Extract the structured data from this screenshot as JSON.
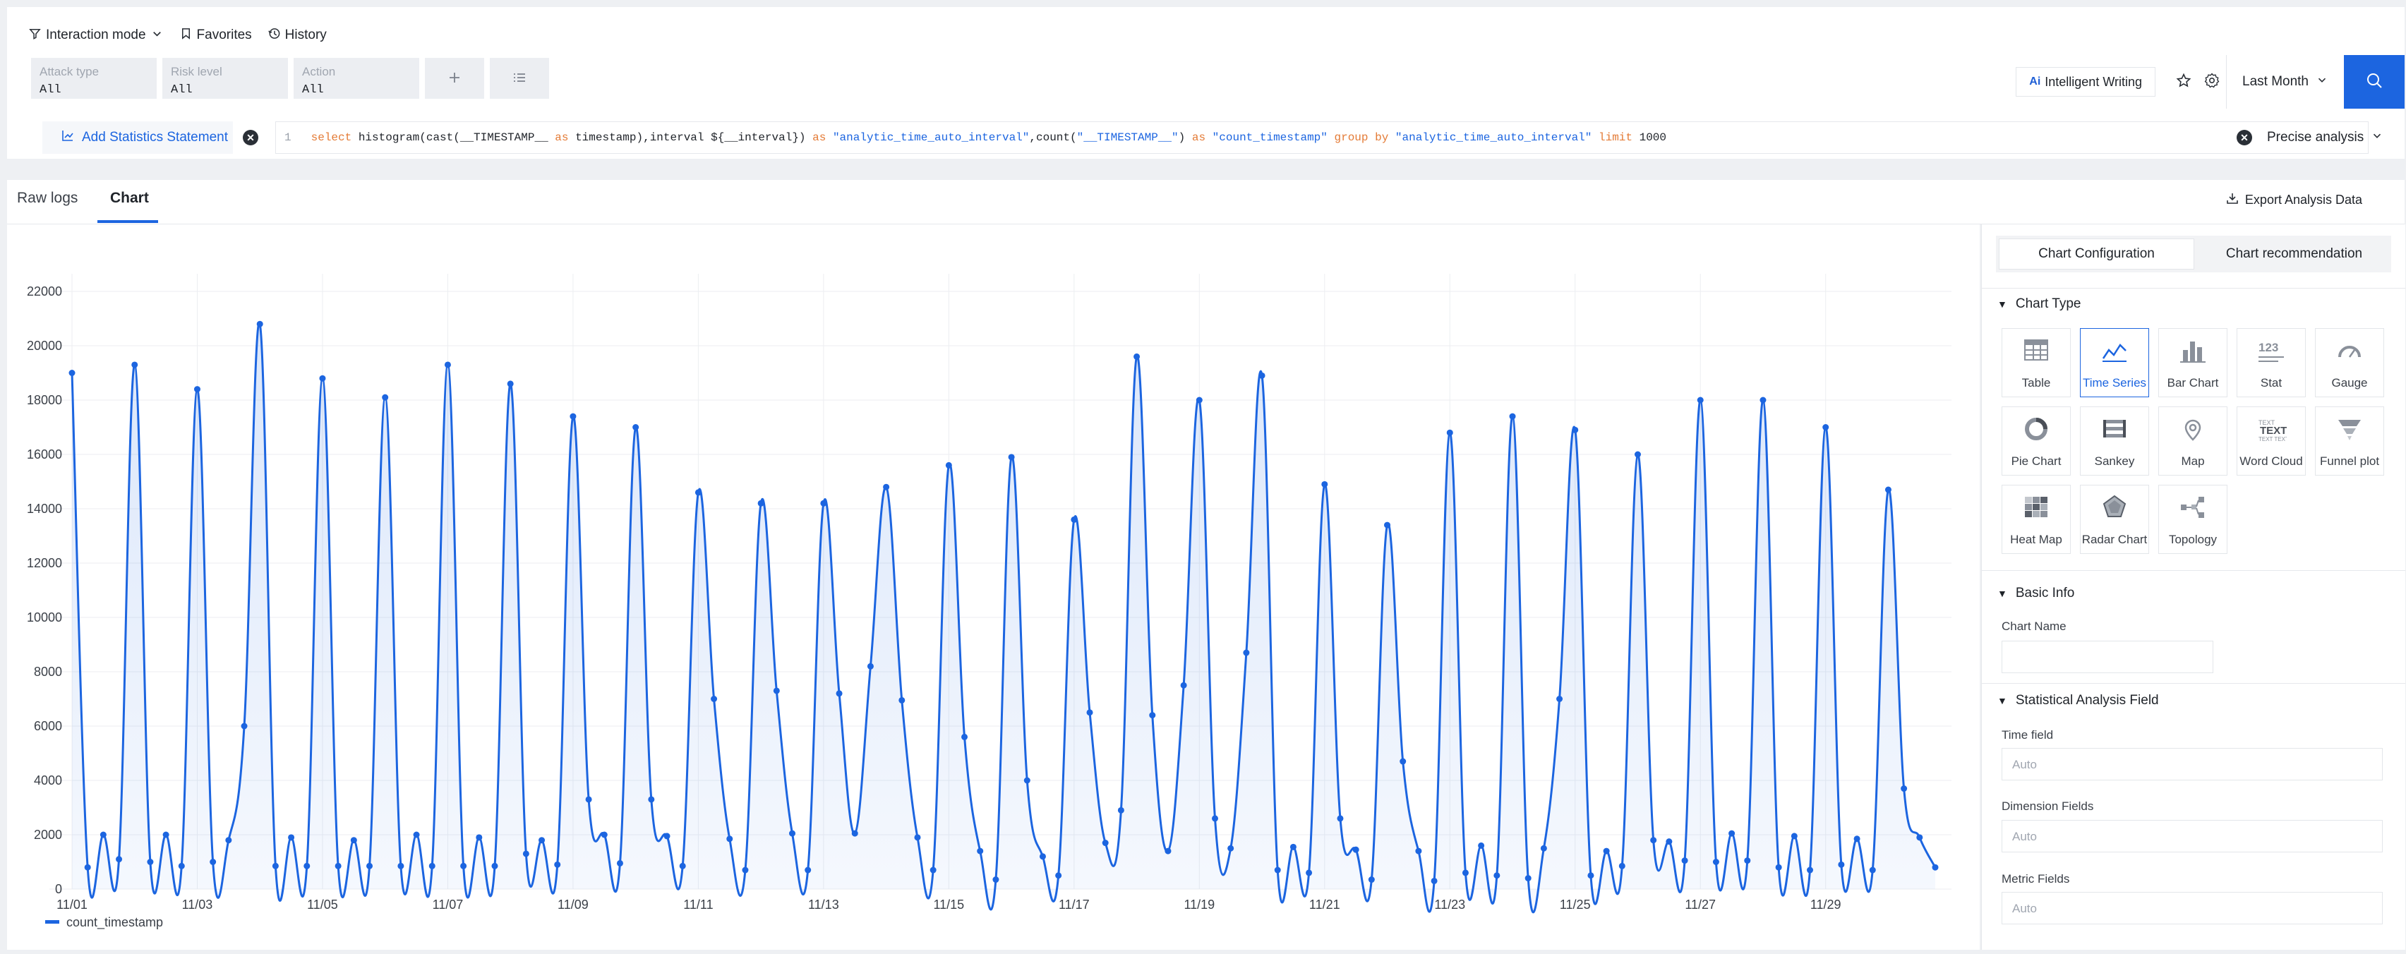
{
  "toolbar": {
    "interaction_mode": "Interaction mode",
    "favorites": "Favorites",
    "history": "History"
  },
  "filters": [
    {
      "label": "Attack type",
      "value": "All"
    },
    {
      "label": "Risk level",
      "value": "All"
    },
    {
      "label": "Action",
      "value": "All"
    }
  ],
  "header": {
    "intelligent_writing": "Intelligent Writing",
    "ai_badge": "Ai",
    "time_range": "Last Month"
  },
  "statement": {
    "add_label": "Add Statistics Statement",
    "line_number": "1",
    "query_parts": [
      {
        "t": "select",
        "c": "kw"
      },
      {
        "t": " histogram(cast(__TIMESTAMP__ ",
        "c": ""
      },
      {
        "t": "as",
        "c": "kw"
      },
      {
        "t": " timestamp),interval ${__interval}) ",
        "c": ""
      },
      {
        "t": "as",
        "c": "kw"
      },
      {
        "t": " ",
        "c": ""
      },
      {
        "t": "\"analytic_time_auto_interval\"",
        "c": "str"
      },
      {
        "t": ",count(",
        "c": ""
      },
      {
        "t": "\"__TIMESTAMP__\"",
        "c": "str"
      },
      {
        "t": ") ",
        "c": ""
      },
      {
        "t": "as",
        "c": "kw"
      },
      {
        "t": " ",
        "c": ""
      },
      {
        "t": "\"count_timestamp\"",
        "c": "str"
      },
      {
        "t": " ",
        "c": ""
      },
      {
        "t": "group by",
        "c": "kw"
      },
      {
        "t": " ",
        "c": ""
      },
      {
        "t": "\"analytic_time_auto_interval\"",
        "c": "str"
      },
      {
        "t": " ",
        "c": ""
      },
      {
        "t": "limit",
        "c": "kw"
      },
      {
        "t": " 1000",
        "c": ""
      }
    ],
    "analysis_mode": "Precise analysis"
  },
  "tabs": [
    {
      "label": "Raw logs",
      "active": false
    },
    {
      "label": "Chart",
      "active": true
    }
  ],
  "export_label": "Export Analysis Data",
  "config": {
    "tabs": [
      "Chart Configuration",
      "Chart recommendation"
    ],
    "chart_type_title": "Chart Type",
    "chart_types": [
      {
        "label": "Table",
        "icon": "table-icon",
        "active": false
      },
      {
        "label": "Time Series",
        "icon": "time-series-icon",
        "active": true
      },
      {
        "label": "Bar Chart",
        "icon": "bar-chart-icon",
        "active": false
      },
      {
        "label": "Stat",
        "icon": "stat-icon",
        "active": false
      },
      {
        "label": "Gauge",
        "icon": "gauge-icon",
        "active": false
      },
      {
        "label": "Pie Chart",
        "icon": "pie-chart-icon",
        "active": false
      },
      {
        "label": "Sankey",
        "icon": "sankey-icon",
        "active": false
      },
      {
        "label": "Map",
        "icon": "map-icon",
        "active": false
      },
      {
        "label": "Word Cloud",
        "icon": "word-cloud-icon",
        "active": false
      },
      {
        "label": "Funnel plot",
        "icon": "funnel-icon",
        "active": false
      },
      {
        "label": "Heat Map",
        "icon": "heat-map-icon",
        "active": false
      },
      {
        "label": "Radar Chart",
        "icon": "radar-chart-icon",
        "active": false
      },
      {
        "label": "Topology",
        "icon": "topology-icon",
        "active": false
      }
    ],
    "basic_info_title": "Basic Info",
    "chart_name_label": "Chart Name",
    "stat_field_title": "Statistical Analysis Field",
    "time_field_label": "Time field",
    "time_field_placeholder": "Auto",
    "dimension_label": "Dimension Fields",
    "dimension_placeholder": "Auto",
    "metric_label": "Metric Fields",
    "metric_placeholder": "Auto"
  },
  "colors": {
    "accent": "#1c65e0",
    "series": "#1c65e0"
  },
  "chart_data": {
    "type": "line",
    "title": "",
    "xlabel": "",
    "ylabel": "",
    "ylim": [
      0,
      22000
    ],
    "yticks": [
      0,
      2000,
      4000,
      6000,
      8000,
      10000,
      12000,
      14000,
      16000,
      18000,
      20000,
      22000
    ],
    "xticks": [
      "11/01",
      "11/03",
      "11/05",
      "11/07",
      "11/09",
      "11/11",
      "11/13",
      "11/15",
      "11/17",
      "11/19",
      "11/21",
      "11/23",
      "11/25",
      "11/27",
      "11/29"
    ],
    "x_start": "11/01",
    "x_interval_hours": 6,
    "grid": true,
    "legend": "bottom-left",
    "area_fill": true,
    "series": [
      {
        "name": "count_timestamp",
        "values": [
          19000,
          800,
          2000,
          1100,
          19300,
          1000,
          2000,
          850,
          18400,
          1000,
          1800,
          6000,
          20800,
          850,
          1900,
          850,
          18800,
          850,
          1800,
          850,
          18100,
          850,
          2000,
          850,
          19300,
          850,
          1900,
          850,
          18600,
          1300,
          1800,
          900,
          17400,
          3300,
          2000,
          950,
          17000,
          3300,
          1950,
          850,
          14600,
          7000,
          1850,
          700,
          14200,
          7300,
          2050,
          700,
          14200,
          7200,
          2050,
          8200,
          14800,
          6950,
          1900,
          700,
          15600,
          5600,
          1400,
          350,
          15900,
          4000,
          1200,
          500,
          13600,
          6500,
          1700,
          2900,
          19600,
          6400,
          1400,
          7500,
          18000,
          2600,
          1500,
          8700,
          18900,
          700,
          1550,
          600,
          14900,
          2600,
          1450,
          350,
          13400,
          4700,
          1400,
          300,
          16800,
          600,
          1600,
          500,
          17400,
          400,
          1500,
          7000,
          16900,
          500,
          1400,
          850,
          16000,
          1800,
          1750,
          1050,
          18000,
          1000,
          2050,
          1050,
          18000,
          800,
          1950,
          700,
          17000,
          900,
          1850,
          700,
          14700,
          3700,
          1900,
          800
        ]
      }
    ]
  }
}
